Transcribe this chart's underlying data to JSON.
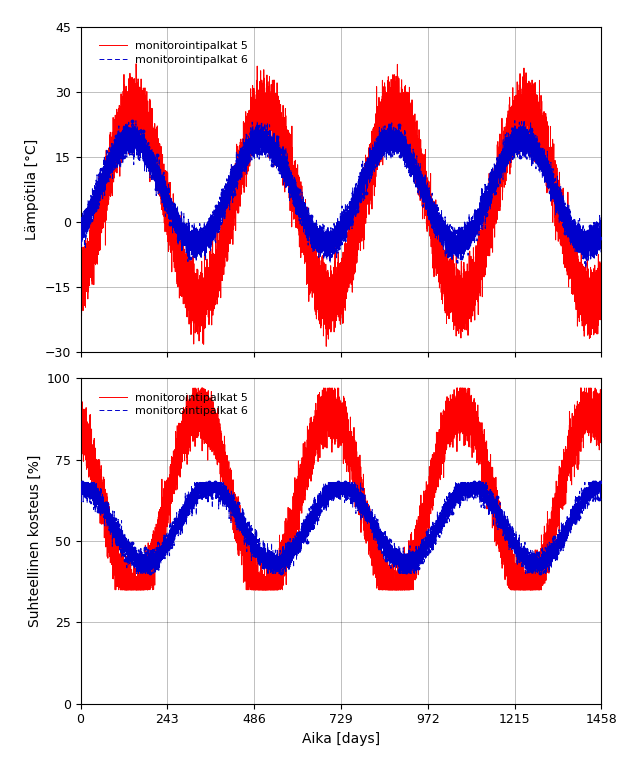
{
  "ylabel_top": "Lämpötila [°C]",
  "ylabel_bottom": "Suhteellinen kosteus [%]",
  "xlabel": "Aika [days]",
  "legend_5": "monitorointipalkat 5",
  "legend_6": "monitorointipalkat 6",
  "x_ticks": [
    0,
    243,
    486,
    729,
    972,
    1215,
    1458
  ],
  "x_lim": [
    0,
    1458
  ],
  "temp_ylim": [
    -30,
    45
  ],
  "temp_yticks": [
    -30,
    -15,
    0,
    15,
    30,
    45
  ],
  "rh_ylim": [
    0,
    100
  ],
  "rh_yticks": [
    0,
    25,
    50,
    75,
    100
  ],
  "color_5": "#ff0000",
  "color_6": "#0000cc",
  "line_width": 0.7,
  "n_days": 1458,
  "background": "#ffffff",
  "period": 365.0
}
